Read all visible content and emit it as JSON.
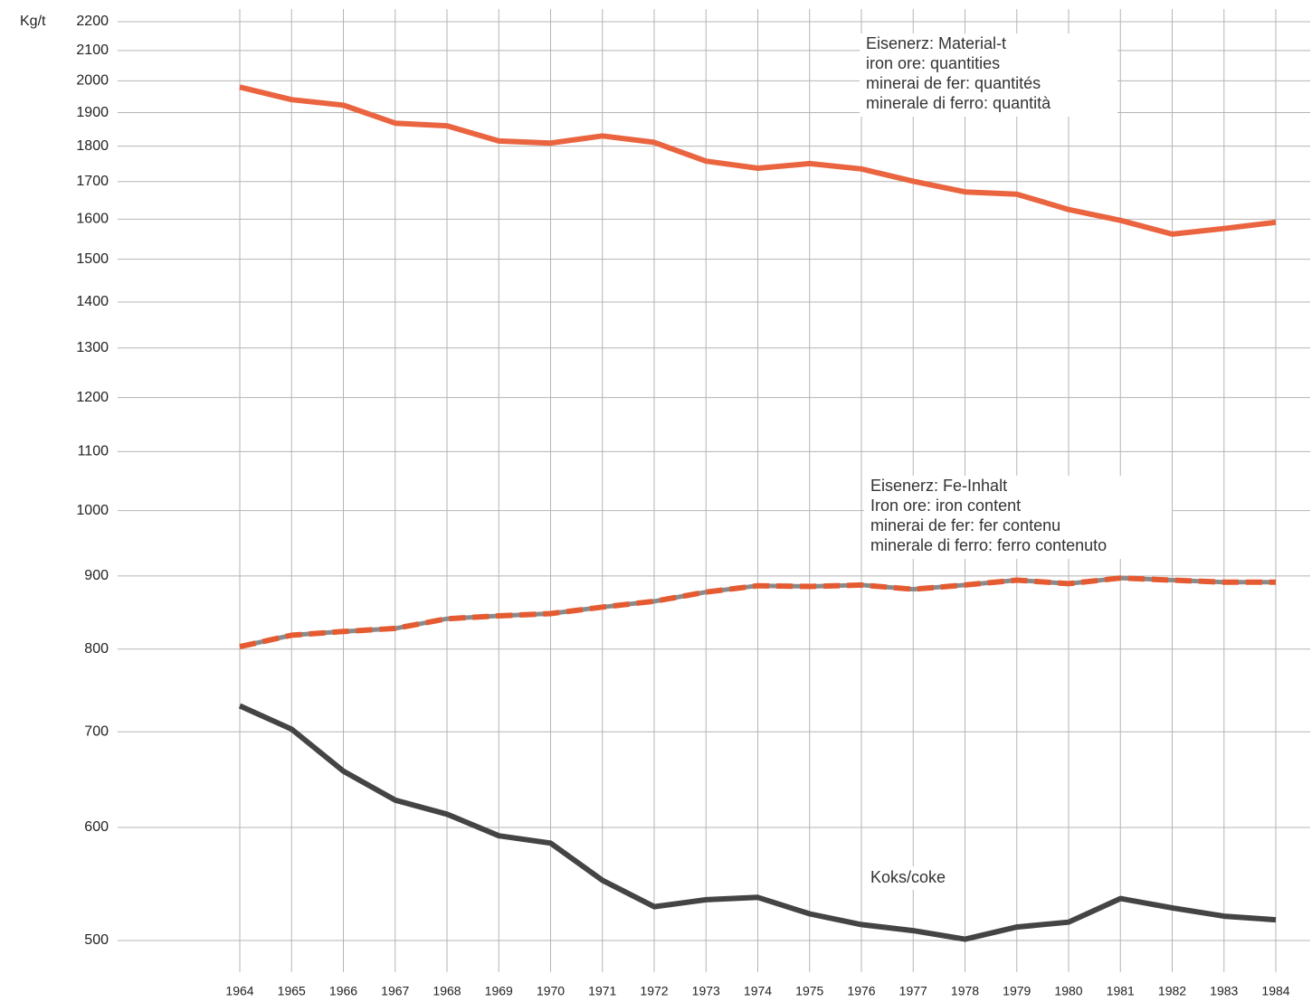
{
  "chart_data": {
    "type": "line",
    "y_label": "Kg/t",
    "log_scale": true,
    "grid": true,
    "categories": [
      "1964",
      "1965",
      "1966",
      "1967",
      "1968",
      "1969",
      "1970",
      "1971",
      "1972",
      "1973",
      "1974",
      "1975",
      "1976",
      "1977",
      "1978",
      "1979",
      "1980",
      "1981",
      "1982",
      "1983",
      "1984"
    ],
    "ylim": [
      500,
      2200
    ],
    "yticks": [
      500,
      600,
      700,
      800,
      900,
      1000,
      1100,
      1200,
      1300,
      1400,
      1500,
      1600,
      1700,
      1800,
      1900,
      2000,
      2100,
      2200
    ],
    "series": [
      {
        "name": "Eisenerz: Material-t",
        "translations": [
          "iron ore: quantities",
          "minerai de fer: quantités",
          "minerale di ferro: quantità"
        ],
        "color": "#ea6440",
        "dashed": false,
        "values": [
          1980,
          1940,
          1923,
          1868,
          1860,
          1815,
          1809,
          1830,
          1811,
          1757,
          1737,
          1750,
          1735,
          1701,
          1672,
          1666,
          1625,
          1597,
          1562,
          1576,
          1592
        ]
      },
      {
        "name": "Eisenerz: Fe-Inhalt",
        "translations": [
          "Iron ore: iron content",
          "minerai de fer: fer contenu",
          "minerale di ferro: ferro contenuto"
        ],
        "color": "#e55a30",
        "dashed": true,
        "values": [
          803,
          818,
          823,
          827,
          840,
          844,
          847,
          856,
          864,
          877,
          886,
          885,
          887,
          881,
          887,
          894,
          889,
          897,
          894,
          891,
          891
        ]
      },
      {
        "name": "Koks/coke",
        "translations": [],
        "color": "#444444",
        "dashed": false,
        "values": [
          730,
          703,
          657,
          627,
          613,
          592,
          585,
          551,
          528,
          534,
          536,
          522,
          513,
          508,
          501,
          511,
          515,
          535,
          527,
          520,
          517
        ]
      }
    ]
  }
}
